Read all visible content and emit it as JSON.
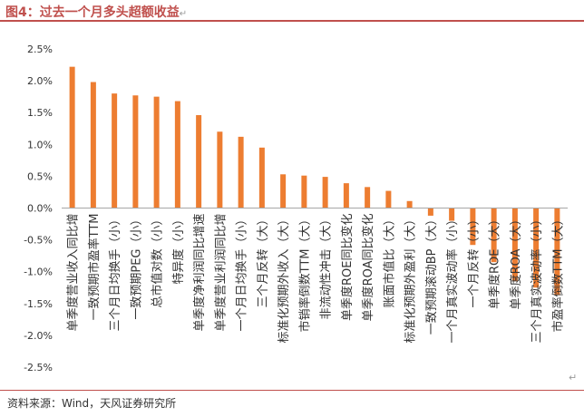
{
  "header": {
    "title": "图4：过去一个月多头超额收益",
    "return_mark": "↵"
  },
  "footer": {
    "source": "资料来源：Wind，天风证券研究所",
    "return_mark": "↵"
  },
  "chart_data": {
    "type": "bar",
    "title": "",
    "xlabel": "",
    "ylabel": "",
    "ylim": [
      -2.5,
      2.5
    ],
    "yticks": [
      2.5,
      2.0,
      1.5,
      1.0,
      0.5,
      0.0,
      -0.5,
      -1.0,
      -1.5,
      -2.0,
      -2.5
    ],
    "ytick_labels": [
      "2.5%",
      "2.0%",
      "1.5%",
      "1.0%",
      "0.5%",
      "0.0%",
      "-0.5%",
      "-1.0%",
      "-1.5%",
      "-2.0%",
      "-2.5%"
    ],
    "value_unit": "%",
    "grid": false,
    "legend": "none",
    "bar_color": "#ed7d31",
    "categories": [
      "单季度营业收入同比增",
      "一致预期市盈率TTM",
      "三个月日均换手（小）",
      "一致预期PEG（小）",
      "总市值对数（小）",
      "特异度（小）",
      "单季度净利润同比增速",
      "单季度营业利润同比增",
      "一个月日均换手（小）",
      "三个月反转（大）",
      "标准化预期外收入（大）",
      "市销率倒数TTM（大）",
      "非流动性冲击（大）",
      "单季度ROE同比变化",
      "单季度ROA同比变化",
      "账面市值比（大）",
      "标准化预期外盈利（大）",
      "一致预期滚动BP（大）",
      "一个月真实波动率（小）",
      "一个月反转（小）",
      "单季度ROE（大）",
      "单季度ROA（大）",
      "三个月真实波动率（小）",
      "市盈率倒数TTM（大）"
    ],
    "values": [
      2.22,
      1.98,
      1.8,
      1.77,
      1.75,
      1.68,
      1.46,
      1.2,
      1.12,
      0.95,
      0.53,
      0.51,
      0.49,
      0.39,
      0.33,
      0.27,
      0.11,
      -0.12,
      -0.2,
      -0.58,
      -0.85,
      -1.15,
      -1.25,
      -1.37
    ]
  }
}
